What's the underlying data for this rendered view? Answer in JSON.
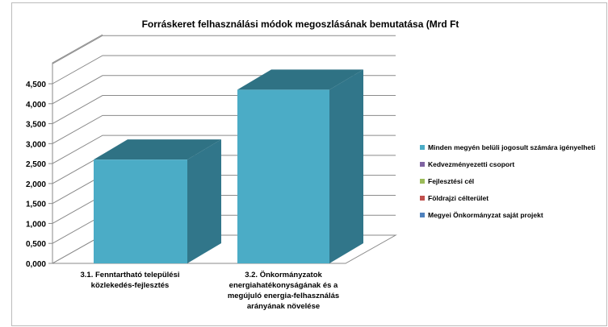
{
  "chart_data": {
    "type": "bar",
    "title": "Forráskeret  felhasználási módok megoszlásának bemutatása (Mrd Ft",
    "categories": [
      [
        "3.1. Fenntartható települési",
        "közlekedés-fejlesztés"
      ],
      [
        "3.2. Önkormányzatok",
        "energiahatékonyságának és a",
        "megújuló energia-felhasználás",
        "arányának növelése"
      ]
    ],
    "series": [
      {
        "name": "Minden megyén belüli jogosult számára igényelheti",
        "values": [
          2.6,
          4.35
        ],
        "color": "#4bacc6"
      }
    ],
    "legend": [
      {
        "label": "Minden megyén belüli jogosult számára igényelheti",
        "color": "#4bacc6"
      },
      {
        "label": "Kedvezményezetti csoport",
        "color": "#8064a2"
      },
      {
        "label": "Fejlesztési cél",
        "color": "#9bbb59"
      },
      {
        "label": "Földrajzi célterület",
        "color": "#c0504d"
      },
      {
        "label": "Megyei Önkormányzat saját projekt",
        "color": "#4f81bd"
      }
    ],
    "y_ticks": [
      "0,000",
      "0,500",
      "1,000",
      "1,500",
      "2,000",
      "2,500",
      "3,000",
      "3,500",
      "4,000",
      "4,500"
    ],
    "ylim": [
      0,
      4.5
    ],
    "y_step": 0.5,
    "grid": true,
    "legend_position": "right",
    "bar_colors": {
      "front": "#4bacc6",
      "side": "#31768a",
      "top": "#2f7284"
    }
  }
}
